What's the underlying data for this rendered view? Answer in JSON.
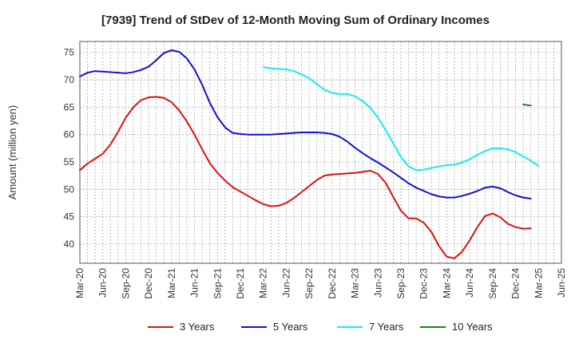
{
  "chart_data": {
    "type": "line",
    "title": "[7939]  Trend of StDev of 12-Month Moving Sum of Ordinary Incomes",
    "xlabel": "",
    "ylabel": "Amount (million yen)",
    "ylim": [
      36.5,
      77
    ],
    "yticks": [
      40,
      45,
      50,
      55,
      60,
      65,
      70,
      75
    ],
    "x_tick_labels": [
      "Mar-20",
      "Jun-20",
      "Sep-20",
      "Dec-20",
      "Mar-21",
      "Jun-21",
      "Sep-21",
      "Dec-21",
      "Mar-22",
      "Jun-22",
      "Sep-22",
      "Dec-22",
      "Mar-23",
      "Jun-23",
      "Sep-23",
      "Dec-23",
      "Mar-24",
      "Jun-24",
      "Sep-24",
      "Dec-24",
      "Mar-25",
      "Jun-25"
    ],
    "grid": true,
    "legend_position": "bottom",
    "series": [
      {
        "name": "3 Years",
        "color": "#dd1111",
        "start_index": 0,
        "values": [
          53.5,
          54.7,
          55.6,
          56.5,
          58.2,
          60.5,
          63.1,
          65.0,
          66.3,
          66.8,
          66.9,
          66.7,
          65.9,
          64.4,
          62.4,
          60.0,
          57.3,
          54.8,
          53.0,
          51.6,
          50.4,
          49.6,
          48.8,
          48.0,
          47.3,
          46.9,
          47.0,
          47.5,
          48.4,
          49.5,
          50.6,
          51.7,
          52.5,
          52.7,
          52.8,
          52.9,
          53.0,
          53.2,
          53.4,
          52.8,
          51.2,
          48.6,
          46.1,
          44.7,
          44.7,
          43.9,
          42.2,
          39.6,
          37.7,
          37.4,
          38.6,
          40.7,
          43.1,
          45.1,
          45.6,
          44.9,
          43.7,
          43.1,
          42.8,
          42.9
        ]
      },
      {
        "name": "5 Years",
        "color": "#1111cc",
        "start_index": 0,
        "values": [
          70.6,
          71.3,
          71.6,
          71.5,
          71.4,
          71.3,
          71.2,
          71.4,
          71.8,
          72.4,
          73.6,
          74.9,
          75.4,
          75.1,
          73.9,
          71.9,
          69.1,
          65.8,
          63.2,
          61.3,
          60.3,
          60.1,
          60.0,
          60.0,
          60.0,
          60.0,
          60.1,
          60.2,
          60.3,
          60.4,
          60.4,
          60.4,
          60.3,
          60.1,
          59.6,
          58.7,
          57.6,
          56.6,
          55.7,
          54.9,
          54.0,
          53.1,
          52.1,
          51.1,
          50.3,
          49.7,
          49.1,
          48.7,
          48.5,
          48.5,
          48.8,
          49.2,
          49.7,
          50.3,
          50.5,
          50.2,
          49.5,
          48.9,
          48.5,
          48.3
        ]
      },
      {
        "name": "7 Years",
        "color": "#11eeee",
        "start_index": 24,
        "values": [
          72.3,
          72.1,
          72.0,
          71.9,
          71.6,
          71.0,
          70.3,
          69.2,
          68.2,
          67.6,
          67.4,
          67.4,
          67.0,
          66.1,
          64.9,
          63.1,
          60.8,
          58.4,
          55.9,
          54.2,
          53.5,
          53.6,
          53.9,
          54.2,
          54.4,
          54.5,
          54.9,
          55.5,
          56.3,
          57.0,
          57.5,
          57.5,
          57.3,
          56.8,
          56.0,
          55.2,
          54.3
        ]
      },
      {
        "name": "10 Years",
        "color": "#118811",
        "start_index": 58,
        "values": [
          65.5,
          65.3
        ]
      }
    ]
  }
}
